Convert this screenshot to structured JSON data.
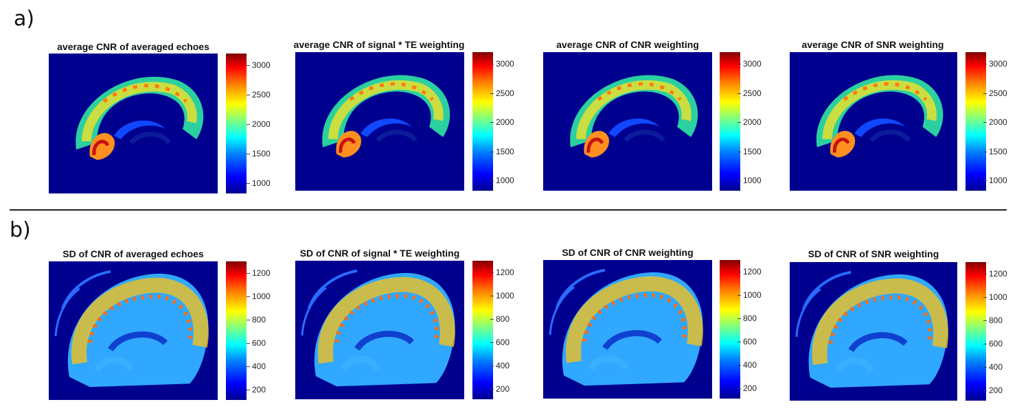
{
  "panel_a_label": "a)",
  "panel_b_label": "b)",
  "row_a": {
    "titles": [
      "average CNR of averaged echoes",
      "average CNR of signal * TE weighting",
      "average CNR of CNR weighting",
      "average CNR of SNR weighting"
    ],
    "colorbar_ticks": [
      "3000",
      "2500",
      "2000",
      "1500",
      "1000"
    ]
  },
  "row_b": {
    "titles": [
      "SD of CNR of averaged echoes",
      "SD of CNR of signal * TE weighting",
      "SD of CNR of CNR weighting",
      "SD of CNR of SNR weighting"
    ],
    "colorbar_ticks": [
      "1200",
      "1000",
      "800",
      "600",
      "400",
      "200"
    ]
  },
  "colors": {
    "background_map": "#00008f",
    "colormap": "jet"
  }
}
